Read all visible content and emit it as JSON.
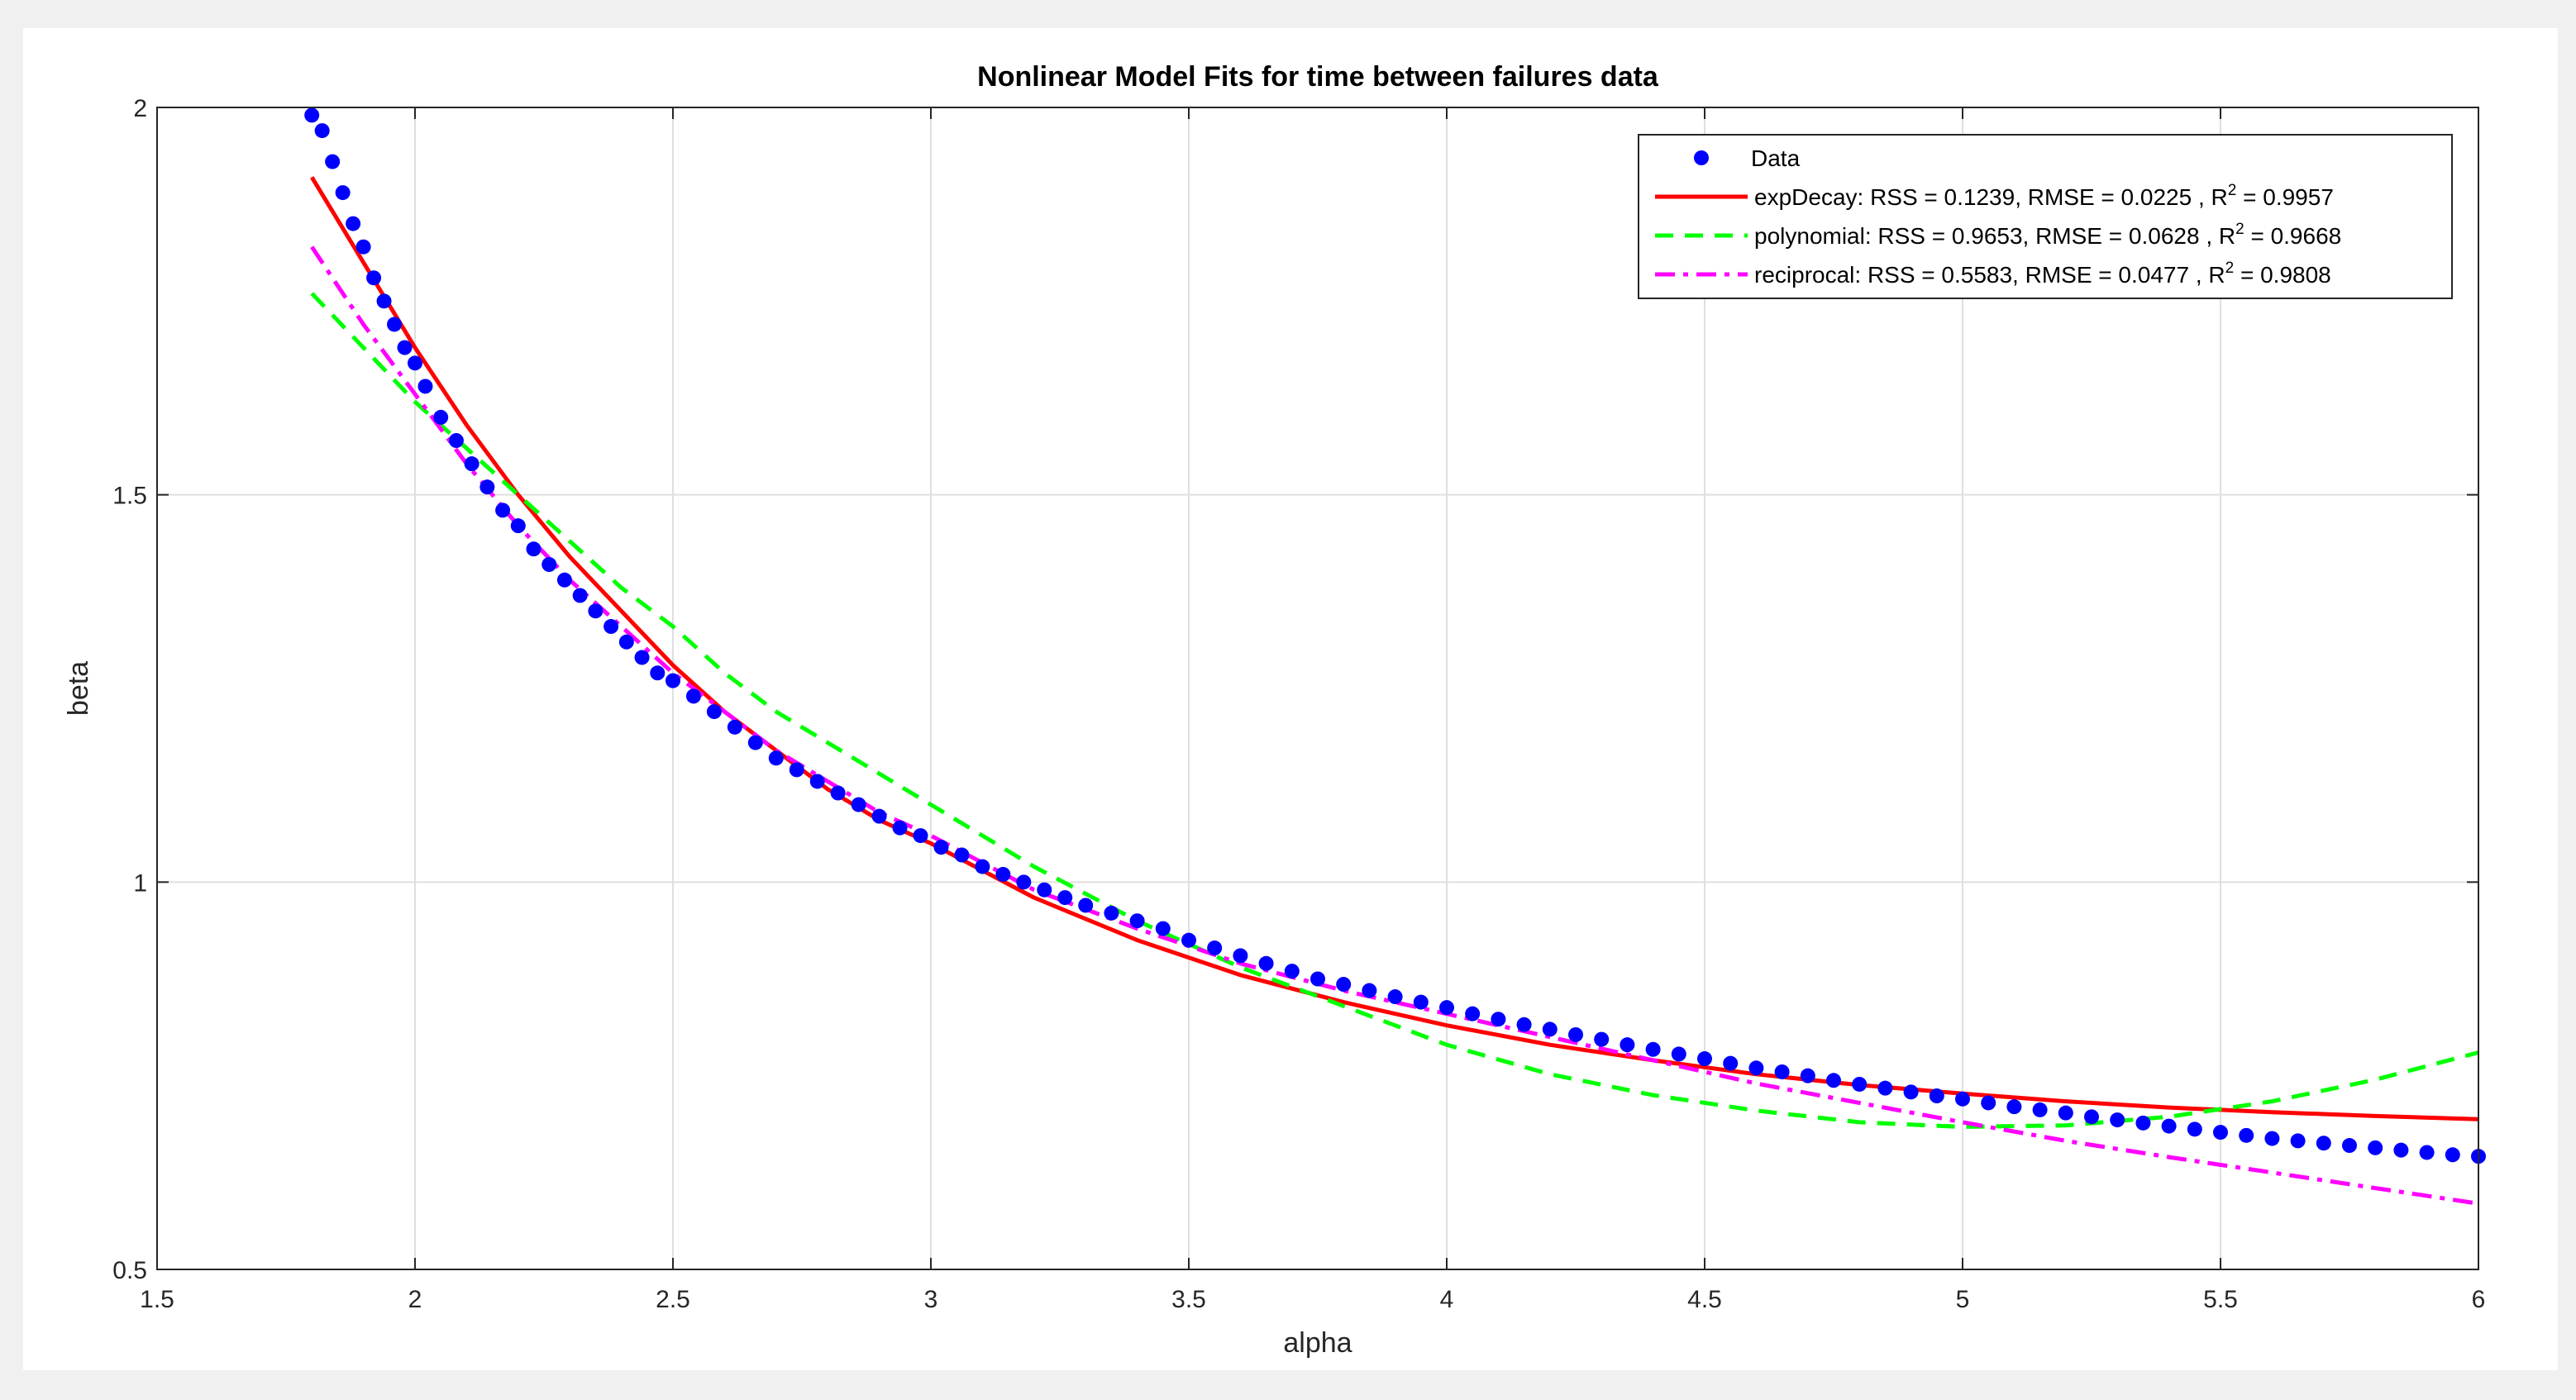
{
  "chart_data": {
    "type": "line",
    "title": "Nonlinear Model Fits for time between failures data",
    "xlabel": "alpha",
    "ylabel": "beta",
    "xlim": [
      1.5,
      6
    ],
    "ylim": [
      0.5,
      2
    ],
    "grid": true,
    "legend_position": "top-right",
    "x_ticks": [
      "1.5",
      "2",
      "2.5",
      "3",
      "3.5",
      "4",
      "4.5",
      "5",
      "5.5",
      "6"
    ],
    "y_ticks": [
      "0.5",
      "1",
      "1.5",
      "2"
    ],
    "data_series": {
      "name": "Data",
      "color": "#0000ff",
      "x": [
        1.8,
        1.82,
        1.84,
        1.86,
        1.88,
        1.9,
        1.92,
        1.94,
        1.96,
        1.98,
        2.0,
        2.02,
        2.05,
        2.08,
        2.11,
        2.14,
        2.17,
        2.2,
        2.23,
        2.26,
        2.29,
        2.32,
        2.35,
        2.38,
        2.41,
        2.44,
        2.47,
        2.5,
        2.54,
        2.58,
        2.62,
        2.66,
        2.7,
        2.74,
        2.78,
        2.82,
        2.86,
        2.9,
        2.94,
        2.98,
        3.02,
        3.06,
        3.1,
        3.14,
        3.18,
        3.22,
        3.26,
        3.3,
        3.35,
        3.4,
        3.45,
        3.5,
        3.55,
        3.6,
        3.65,
        3.7,
        3.75,
        3.8,
        3.85,
        3.9,
        3.95,
        4.0,
        4.05,
        4.1,
        4.15,
        4.2,
        4.25,
        4.3,
        4.35,
        4.4,
        4.45,
        4.5,
        4.55,
        4.6,
        4.65,
        4.7,
        4.75,
        4.8,
        4.85,
        4.9,
        4.95,
        5.0,
        5.05,
        5.1,
        5.15,
        5.2,
        5.25,
        5.3,
        5.35,
        5.4,
        5.45,
        5.5,
        5.55,
        5.6,
        5.65,
        5.7,
        5.75,
        5.8,
        5.85,
        5.9,
        5.95,
        6.0
      ],
      "y": [
        1.99,
        1.97,
        1.93,
        1.89,
        1.85,
        1.82,
        1.78,
        1.75,
        1.72,
        1.69,
        1.67,
        1.64,
        1.6,
        1.57,
        1.54,
        1.51,
        1.48,
        1.46,
        1.43,
        1.41,
        1.39,
        1.37,
        1.35,
        1.33,
        1.31,
        1.29,
        1.27,
        1.26,
        1.24,
        1.22,
        1.2,
        1.18,
        1.16,
        1.145,
        1.13,
        1.115,
        1.1,
        1.085,
        1.07,
        1.06,
        1.045,
        1.035,
        1.02,
        1.01,
        1.0,
        0.99,
        0.98,
        0.97,
        0.96,
        0.95,
        0.94,
        0.925,
        0.915,
        0.905,
        0.895,
        0.885,
        0.875,
        0.868,
        0.86,
        0.852,
        0.845,
        0.838,
        0.83,
        0.823,
        0.816,
        0.81,
        0.803,
        0.797,
        0.79,
        0.784,
        0.778,
        0.772,
        0.766,
        0.76,
        0.755,
        0.75,
        0.744,
        0.739,
        0.734,
        0.729,
        0.724,
        0.72,
        0.715,
        0.71,
        0.706,
        0.702,
        0.697,
        0.693,
        0.689,
        0.685,
        0.681,
        0.677,
        0.673,
        0.669,
        0.666,
        0.663,
        0.66,
        0.657,
        0.654,
        0.651,
        0.648,
        0.646
      ]
    },
    "series": [
      {
        "name": "expDecay",
        "label": "expDecay: RSS = 0.1239,  RMSE = 0.0225 , R",
        "label_suffix": " = 0.9957",
        "color": "#ff0000",
        "style": "solid",
        "x": [
          1.8,
          1.9,
          2.0,
          2.1,
          2.2,
          2.3,
          2.4,
          2.5,
          2.6,
          2.7,
          2.8,
          2.9,
          3.0,
          3.2,
          3.4,
          3.6,
          3.8,
          4.0,
          4.2,
          4.4,
          4.6,
          4.8,
          5.0,
          5.2,
          5.4,
          5.6,
          5.8,
          6.0
        ],
        "y": [
          1.91,
          1.8,
          1.69,
          1.59,
          1.5,
          1.42,
          1.35,
          1.28,
          1.22,
          1.17,
          1.12,
          1.08,
          1.05,
          0.98,
          0.925,
          0.88,
          0.845,
          0.815,
          0.79,
          0.77,
          0.752,
          0.738,
          0.727,
          0.717,
          0.709,
          0.703,
          0.698,
          0.694
        ]
      },
      {
        "name": "polynomial",
        "label": "polynomial: RSS = 0.9653,  RMSE = 0.0628 , R",
        "label_suffix": " = 0.9668",
        "color": "#00ff00",
        "style": "dashed",
        "x": [
          1.8,
          1.9,
          2.0,
          2.1,
          2.2,
          2.3,
          2.4,
          2.5,
          2.6,
          2.7,
          2.8,
          2.9,
          3.0,
          3.2,
          3.4,
          3.6,
          3.8,
          4.0,
          4.2,
          4.4,
          4.6,
          4.8,
          5.0,
          5.2,
          5.4,
          5.6,
          5.8,
          6.0
        ],
        "y": [
          1.76,
          1.69,
          1.62,
          1.56,
          1.5,
          1.44,
          1.38,
          1.33,
          1.27,
          1.22,
          1.18,
          1.14,
          1.1,
          1.02,
          0.95,
          0.89,
          0.84,
          0.79,
          0.752,
          0.725,
          0.705,
          0.69,
          0.684,
          0.686,
          0.697,
          0.717,
          0.745,
          0.78
        ]
      },
      {
        "name": "reciprocal",
        "label": "reciprocal: RSS = 0.5583,  RMSE = 0.0477 , R",
        "label_suffix": " = 0.9808",
        "color": "#ff00ff",
        "style": "dashdot",
        "x": [
          1.8,
          1.9,
          2.0,
          2.1,
          2.2,
          2.3,
          2.4,
          2.5,
          2.6,
          2.7,
          2.8,
          2.9,
          3.0,
          3.2,
          3.4,
          3.6,
          3.8,
          4.0,
          4.2,
          4.4,
          4.6,
          4.8,
          5.0,
          5.2,
          5.4,
          5.6,
          5.8,
          6.0
        ],
        "y": [
          1.82,
          1.72,
          1.63,
          1.54,
          1.46,
          1.39,
          1.33,
          1.27,
          1.22,
          1.17,
          1.13,
          1.09,
          1.06,
          0.99,
          0.94,
          0.895,
          0.86,
          0.83,
          0.8,
          0.77,
          0.74,
          0.715,
          0.69,
          0.666,
          0.645,
          0.625,
          0.605,
          0.585
        ]
      }
    ]
  }
}
